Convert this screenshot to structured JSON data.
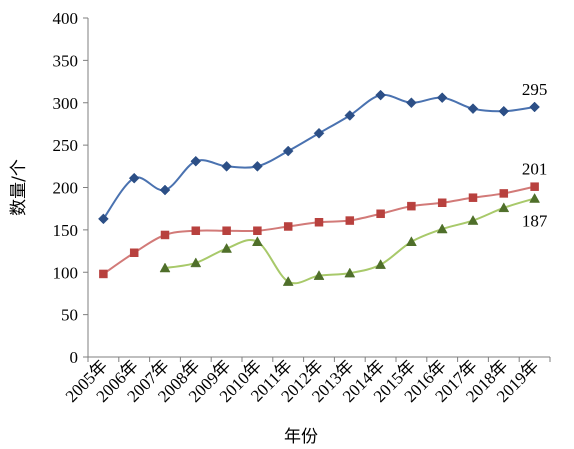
{
  "chart_data": {
    "type": "line",
    "categories": [
      "2005年",
      "2006年",
      "2007年",
      "2008年",
      "2009年",
      "2010年",
      "2011年",
      "2012年",
      "2013年",
      "2014年",
      "2015年",
      "2016年",
      "2017年",
      "2018年",
      "2019年"
    ],
    "xlabel": "年份",
    "ylabel": "数量/个",
    "ylim": [
      0,
      400
    ],
    "yticks": [
      0,
      50,
      100,
      150,
      200,
      250,
      300,
      350,
      400
    ],
    "grid": false,
    "legend": "none",
    "series": [
      {
        "marker": "diamond",
        "color": "#4a72b0",
        "marker_color": "#2c4f86",
        "values": [
          163,
          211,
          197,
          231,
          225,
          225,
          243,
          264,
          285,
          309,
          300,
          306,
          293,
          290,
          295
        ],
        "end_label": "295"
      },
      {
        "marker": "square",
        "color": "#d27a78",
        "marker_color": "#b8413e",
        "values": [
          98,
          123,
          144,
          149,
          149,
          149,
          154,
          159,
          161,
          169,
          178,
          182,
          188,
          193,
          201
        ],
        "end_label": "201"
      },
      {
        "marker": "triangle",
        "color": "#a8c96a",
        "marker_color": "#4f6f2a",
        "values": [
          null,
          null,
          105,
          111,
          128,
          136,
          89,
          96,
          99,
          109,
          136,
          151,
          161,
          176,
          187
        ],
        "end_label": "187"
      }
    ]
  }
}
